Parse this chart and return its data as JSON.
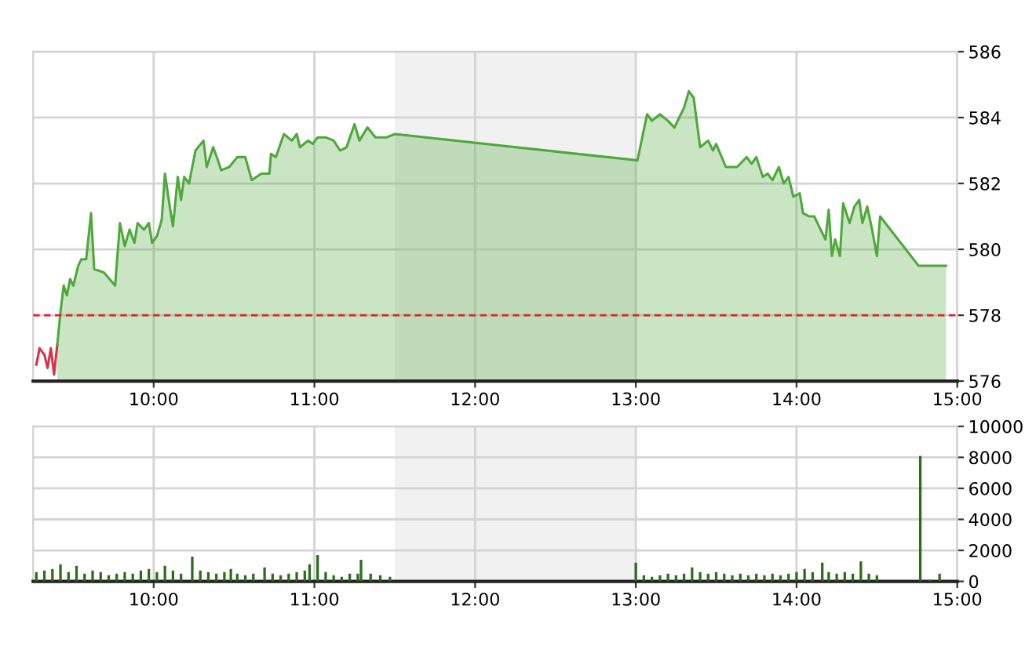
{
  "chart_data": [
    {
      "type": "area",
      "series": [
        {
          "type": "line",
          "color": "#d6344a",
          "x": [
            9.27,
            9.29,
            9.32,
            9.34,
            9.36,
            9.38,
            9.4
          ],
          "values": [
            576.5,
            577.0,
            576.8,
            576.4,
            577.0,
            576.2,
            577.1
          ]
        },
        {
          "type": "area",
          "color": "#4ea83a",
          "x": [
            9.4,
            9.42,
            9.44,
            9.46,
            9.48,
            9.5,
            9.53,
            9.55,
            9.58,
            9.61,
            9.63,
            9.69,
            9.76,
            9.79,
            9.82,
            9.85,
            9.88,
            9.9,
            9.94,
            9.97,
            9.99,
            10.02,
            10.05,
            10.07,
            10.1,
            10.12,
            10.15,
            10.17,
            10.19,
            10.22,
            10.26,
            10.31,
            10.33,
            10.37,
            10.4,
            10.42,
            10.47,
            10.52,
            10.57,
            10.61,
            10.67,
            10.72,
            10.73,
            10.76,
            10.81,
            10.86,
            10.89,
            10.91,
            10.96,
            10.99,
            11.02,
            11.07,
            11.12,
            11.16,
            11.2,
            11.25,
            11.28,
            11.33,
            11.38,
            11.45,
            11.5,
            13.01,
            13.04,
            13.07,
            13.1,
            13.15,
            13.2,
            13.24,
            13.27,
            13.3,
            13.33,
            13.36,
            13.4,
            13.45,
            13.48,
            13.5,
            13.56,
            13.63,
            13.69,
            13.72,
            13.75,
            13.79,
            13.82,
            13.85,
            13.89,
            13.92,
            13.95,
            13.98,
            14.02,
            14.04,
            14.08,
            14.11,
            14.13,
            14.16,
            14.18,
            14.2,
            14.22,
            14.24,
            14.27,
            14.29,
            14.33,
            14.36,
            14.39,
            14.41,
            14.44,
            14.47,
            14.5,
            14.52,
            14.76,
            14.93
          ],
          "values": [
            577.1,
            578.1,
            578.9,
            578.6,
            579.1,
            578.9,
            579.5,
            579.7,
            579.7,
            581.1,
            579.4,
            579.3,
            578.9,
            580.8,
            580.1,
            580.6,
            580.2,
            580.8,
            580.6,
            580.8,
            580.2,
            580.4,
            580.9,
            582.3,
            581.3,
            580.7,
            582.2,
            581.5,
            582.2,
            582.0,
            583.0,
            583.3,
            582.5,
            583.1,
            582.7,
            582.4,
            582.5,
            582.8,
            582.8,
            582.1,
            582.3,
            582.3,
            582.9,
            582.8,
            583.5,
            583.3,
            583.5,
            583.1,
            583.3,
            583.2,
            583.4,
            583.4,
            583.3,
            583.0,
            583.1,
            583.8,
            583.3,
            583.7,
            583.4,
            583.4,
            583.5,
            582.7,
            583.4,
            584.1,
            583.9,
            584.1,
            583.9,
            583.7,
            584.0,
            584.3,
            584.8,
            584.6,
            583.1,
            583.3,
            583.0,
            583.2,
            582.5,
            582.5,
            582.8,
            582.6,
            582.8,
            582.2,
            582.3,
            582.1,
            582.5,
            582.0,
            582.2,
            581.6,
            581.7,
            581.1,
            581.0,
            581.0,
            580.8,
            580.5,
            580.3,
            581.2,
            579.8,
            580.3,
            579.8,
            581.4,
            580.8,
            581.3,
            581.5,
            580.8,
            581.3,
            580.6,
            579.8,
            581.0,
            579.5,
            579.5
          ]
        }
      ],
      "xlim": [
        9.25,
        15
      ],
      "xticks": [
        {
          "value": 10,
          "label": "10:00"
        },
        {
          "value": 11,
          "label": "11:00"
        },
        {
          "value": 12,
          "label": "12:00"
        },
        {
          "value": 13,
          "label": "13:00"
        },
        {
          "value": 14,
          "label": "14:00"
        },
        {
          "value": 15,
          "label": "15:00"
        }
      ],
      "ylim": [
        576,
        586
      ],
      "yticks": [
        576,
        578,
        580,
        582,
        584,
        586
      ],
      "ref_lines": [
        {
          "axis": "y",
          "value": 578,
          "label": null,
          "color": "#e8202a",
          "line_style": "dashed"
        }
      ],
      "bands": [
        {
          "axis": "x",
          "from": 11.5,
          "to": 13,
          "label": null,
          "color": "#f1f1f1"
        }
      ],
      "grid": true
    },
    {
      "type": "bar",
      "x": [
        9.27,
        9.32,
        9.37,
        9.42,
        9.47,
        9.52,
        9.57,
        9.62,
        9.67,
        9.72,
        9.77,
        9.82,
        9.87,
        9.92,
        9.97,
        10.02,
        10.07,
        10.12,
        10.17,
        10.24,
        10.29,
        10.34,
        10.39,
        10.44,
        10.48,
        10.52,
        10.57,
        10.62,
        10.69,
        10.74,
        10.79,
        10.84,
        10.89,
        10.94,
        10.97,
        11.02,
        11.07,
        11.12,
        11.17,
        11.22,
        11.27,
        11.29,
        11.35,
        11.41,
        11.47,
        13.0,
        13.05,
        13.1,
        13.15,
        13.2,
        13.25,
        13.3,
        13.35,
        13.4,
        13.45,
        13.5,
        13.55,
        13.6,
        13.65,
        13.7,
        13.75,
        13.8,
        13.85,
        13.9,
        13.95,
        14.0,
        14.05,
        14.1,
        14.16,
        14.2,
        14.25,
        14.3,
        14.35,
        14.4,
        14.45,
        14.5,
        14.77,
        14.83,
        14.89
      ],
      "values": [
        600,
        700,
        800,
        1100,
        600,
        1000,
        500,
        700,
        600,
        400,
        500,
        600,
        500,
        700,
        800,
        600,
        1000,
        700,
        500,
        1600,
        700,
        600,
        500,
        600,
        800,
        500,
        400,
        500,
        900,
        500,
        400,
        500,
        600,
        700,
        1100,
        1700,
        600,
        400,
        300,
        500,
        500,
        1400,
        500,
        400,
        300,
        1200,
        400,
        300,
        400,
        500,
        400,
        500,
        900,
        600,
        500,
        600,
        500,
        400,
        500,
        400,
        500,
        400,
        500,
        400,
        500,
        600,
        800,
        600,
        1200,
        600,
        500,
        600,
        500,
        1300,
        500,
        400,
        8100,
        100,
        500
      ],
      "color": "#2f6b1f",
      "xlim": [
        9.25,
        15
      ],
      "xticks": [
        {
          "value": 10,
          "label": "10:00"
        },
        {
          "value": 11,
          "label": "11:00"
        },
        {
          "value": 12,
          "label": "12:00"
        },
        {
          "value": 13,
          "label": "13:00"
        },
        {
          "value": 14,
          "label": "14:00"
        },
        {
          "value": 15,
          "label": "15:00"
        }
      ],
      "ylim": [
        0,
        10000
      ],
      "yticks": [
        0,
        2000,
        4000,
        6000,
        8000,
        10000
      ],
      "bands": [
        {
          "axis": "x",
          "from": 11.5,
          "to": 13,
          "label": null,
          "color": "#f1f1f1"
        }
      ],
      "grid": true
    }
  ]
}
